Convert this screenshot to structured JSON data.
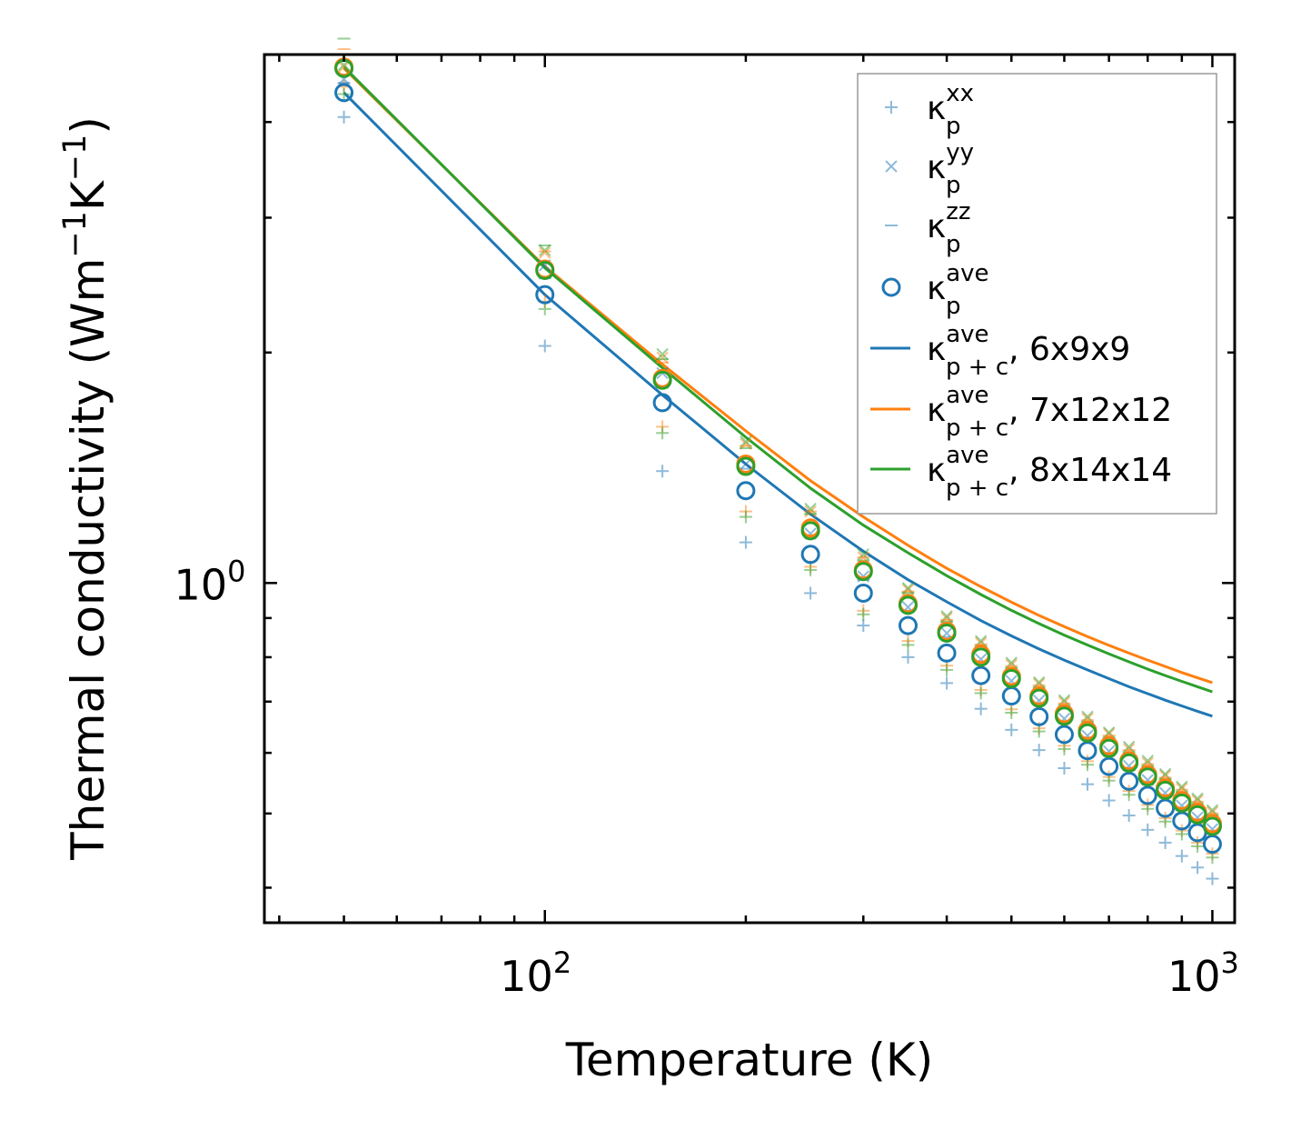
{
  "chart_data": {
    "type": "scatter",
    "title": "",
    "xlabel": "Temperature (K)",
    "ylabel": "Thermal conductivity (Wm",
    "ylabel_sup1": "−1",
    "ylabel_mid": "K",
    "ylabel_sup2": "−1",
    "ylabel_end": ")",
    "xscale": "log",
    "yscale": "log",
    "xlim": [
      38,
      1080
    ],
    "ylim": [
      0.36,
      4.9
    ],
    "x_major_ticks": [
      {
        "value": 100,
        "base": "10",
        "exp": "2"
      },
      {
        "value": 1000,
        "base": "10",
        "exp": "3"
      }
    ],
    "y_major_ticks": [
      {
        "value": 1,
        "base": "10",
        "exp": "0"
      }
    ],
    "legend_position": "top-right",
    "x": [
      50,
      100,
      150,
      200,
      250,
      300,
      350,
      400,
      450,
      500,
      550,
      600,
      650,
      700,
      750,
      800,
      850,
      900,
      950,
      1000
    ],
    "series": [
      {
        "name": "kxx",
        "legend_base": "κ",
        "legend_sub": "p",
        "legend_sup": "xx",
        "legend_suffix": "",
        "marker": "plus",
        "colors": [
          "#1f77b4",
          "#ff7f0e",
          "#2ca02c"
        ],
        "mesh_values": [
          [
            4.06,
            2.04,
            1.4,
            1.13,
            0.97,
            0.88,
            0.8,
            0.74,
            0.685,
            0.643,
            0.605,
            0.573,
            0.546,
            0.52,
            0.497,
            0.476,
            0.458,
            0.44,
            0.425,
            0.411
          ],
          [
            4.45,
            2.33,
            1.6,
            1.24,
            1.05,
            0.92,
            0.84,
            0.78,
            0.725,
            0.684,
            0.646,
            0.613,
            0.585,
            0.558,
            0.535,
            0.513,
            0.493,
            0.475,
            0.458,
            0.443
          ],
          [
            4.35,
            2.28,
            1.57,
            1.22,
            1.04,
            0.91,
            0.83,
            0.77,
            0.718,
            0.677,
            0.64,
            0.607,
            0.579,
            0.552,
            0.529,
            0.507,
            0.488,
            0.47,
            0.453,
            0.438
          ]
        ]
      },
      {
        "name": "kyy",
        "legend_base": "κ",
        "legend_sub": "p",
        "legend_sup": "yy",
        "legend_suffix": "",
        "marker": "x",
        "colors": [
          "#1f77b4",
          "#ff7f0e",
          "#2ca02c"
        ],
        "mesh_values": [
          [
            4.55,
            2.6,
            1.88,
            1.43,
            1.16,
            1.02,
            0.93,
            0.86,
            0.795,
            0.745,
            0.702,
            0.665,
            0.632,
            0.603,
            0.577,
            0.553,
            0.532,
            0.512,
            0.494,
            0.477
          ],
          [
            4.72,
            2.7,
            1.97,
            1.52,
            1.24,
            1.08,
            0.98,
            0.9,
            0.835,
            0.782,
            0.738,
            0.699,
            0.665,
            0.635,
            0.607,
            0.582,
            0.56,
            0.539,
            0.52,
            0.502
          ],
          [
            4.75,
            2.72,
            1.99,
            1.53,
            1.25,
            1.09,
            0.985,
            0.905,
            0.84,
            0.787,
            0.742,
            0.703,
            0.669,
            0.638,
            0.611,
            0.586,
            0.563,
            0.542,
            0.523,
            0.505
          ]
        ]
      },
      {
        "name": "kzz",
        "legend_base": "κ",
        "legend_sub": "p",
        "legend_sup": "zz",
        "legend_suffix": "",
        "marker": "dash",
        "colors": [
          "#1f77b4",
          "#ff7f0e",
          "#2ca02c"
        ],
        "mesh_values": [
          [
            4.5,
            2.5,
            1.8,
            1.41,
            1.15,
            1.01,
            0.92,
            0.85,
            0.785,
            0.736,
            0.694,
            0.657,
            0.625,
            0.596,
            0.57,
            0.547,
            0.526,
            0.506,
            0.488,
            0.471
          ],
          [
            4.98,
            2.71,
            1.94,
            1.51,
            1.24,
            1.08,
            0.975,
            0.895,
            0.831,
            0.779,
            0.735,
            0.696,
            0.662,
            0.632,
            0.605,
            0.58,
            0.557,
            0.537,
            0.518,
            0.5
          ],
          [
            5.14,
            2.76,
            1.96,
            1.5,
            1.23,
            1.07,
            0.97,
            0.89,
            0.826,
            0.774,
            0.73,
            0.691,
            0.658,
            0.628,
            0.601,
            0.576,
            0.554,
            0.533,
            0.514,
            0.497
          ]
        ]
      },
      {
        "name": "kave",
        "legend_base": "κ",
        "legend_sub": "p",
        "legend_sup": "ave",
        "legend_suffix": "",
        "marker": "circle",
        "colors": [
          "#1f77b4",
          "#ff7f0e",
          "#2ca02c"
        ],
        "mesh_values": [
          [
            4.37,
            2.38,
            1.72,
            1.32,
            1.09,
            0.97,
            0.88,
            0.81,
            0.757,
            0.712,
            0.669,
            0.634,
            0.604,
            0.576,
            0.551,
            0.528,
            0.508,
            0.489,
            0.472,
            0.456
          ],
          [
            4.72,
            2.57,
            1.85,
            1.43,
            1.18,
            1.04,
            0.94,
            0.865,
            0.807,
            0.755,
            0.712,
            0.675,
            0.642,
            0.613,
            0.586,
            0.562,
            0.54,
            0.52,
            0.502,
            0.485
          ],
          [
            4.7,
            2.56,
            1.84,
            1.42,
            1.17,
            1.035,
            0.935,
            0.86,
            0.8,
            0.75,
            0.707,
            0.67,
            0.637,
            0.608,
            0.582,
            0.558,
            0.536,
            0.516,
            0.498,
            0.481
          ]
        ]
      },
      {
        "name": "kpc-6x9x9",
        "legend_base": "κ",
        "legend_sub": "p + c",
        "legend_sup": "ave",
        "legend_suffix": ", 6x9x9",
        "line": true,
        "color": "#1f77b4",
        "values": [
          4.37,
          2.38,
          1.76,
          1.43,
          1.23,
          1.1,
          1.01,
          0.945,
          0.893,
          0.853,
          0.82,
          0.793,
          0.77,
          0.75,
          0.732,
          0.717,
          0.703,
          0.691,
          0.68,
          0.67
        ]
      },
      {
        "name": "kpc-7x12x12",
        "legend_base": "κ",
        "legend_sub": "p + c",
        "legend_sup": "ave",
        "legend_suffix": ", 7x12x12",
        "line": true,
        "color": "#ff7f0e",
        "values": [
          4.7,
          2.59,
          1.93,
          1.58,
          1.36,
          1.22,
          1.12,
          1.045,
          0.989,
          0.944,
          0.907,
          0.877,
          0.851,
          0.829,
          0.81,
          0.793,
          0.778,
          0.764,
          0.752,
          0.741
        ]
      },
      {
        "name": "kpc-8x14x14",
        "legend_base": "κ",
        "legend_sub": "p + c",
        "legend_sup": "ave",
        "legend_suffix": ", 8x14x14",
        "line": true,
        "color": "#2ca02c",
        "values": [
          4.72,
          2.58,
          1.91,
          1.55,
          1.33,
          1.19,
          1.095,
          1.022,
          0.966,
          0.921,
          0.885,
          0.855,
          0.83,
          0.808,
          0.789,
          0.772,
          0.757,
          0.744,
          0.732,
          0.721
        ]
      }
    ],
    "legend_marker_color": "#1f77b4"
  }
}
